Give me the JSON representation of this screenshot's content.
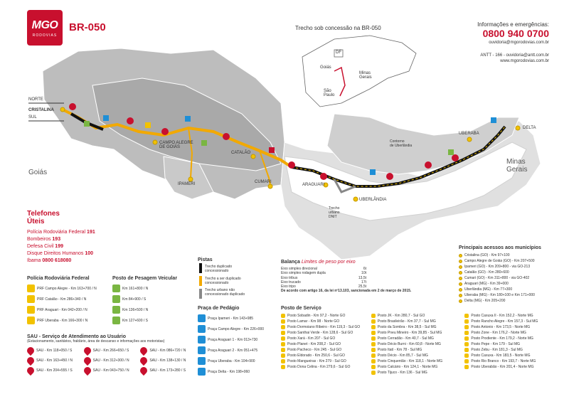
{
  "header": {
    "logo_text": "MGO",
    "logo_sub": "RODOVIAS",
    "highway": "BR-050",
    "trecho": "Trecho sob concessão na BR-050"
  },
  "contact": {
    "title": "Informações e emergências:",
    "phone": "0800 940 0700",
    "email": "ouvidoria@mgorodovias.com.br",
    "antt": "ANTT - 166 - ouvidoria@antt.com.br",
    "site": "www.mgorodovias.com.br"
  },
  "inset": {
    "df": "DF",
    "goias": "Goiás",
    "minas": "Minas\nGerais",
    "sp": "São\nPaulo"
  },
  "map_labels": {
    "norte": "NORTE",
    "sul": "SUL",
    "cristalina": "CRISTALINA",
    "campo_alegre": "CAMPO ALEGRE\nDE GOIÁS",
    "ipameri": "IPAMERI",
    "catalao": "CATALÃO",
    "cumari": "CUMARI",
    "araguari": "ARAGUARI",
    "uberlandia": "UBERLÂNDIA",
    "uberaba": "UBERABA",
    "delta": "DELTA",
    "goias": "Goiás",
    "minas_gerais": "Minas\nGerais",
    "contorno": "Contorno\nde Uberlândia",
    "trecho_urbano": "Trecho\nurbano\nDNIT"
  },
  "telefones": {
    "title": "Telefones\nÚteis",
    "items": [
      {
        "label": "Polícia Rodoviária Federal",
        "num": "191"
      },
      {
        "label": "Bombeiros",
        "num": "193"
      },
      {
        "label": "Defesa Civil",
        "num": "199"
      },
      {
        "label": "Disque Direitos Humanos",
        "num": "100"
      },
      {
        "label": "Ibama",
        "num": "0800 618080"
      }
    ]
  },
  "prf": {
    "title": "Polícia Rodoviária Federal",
    "items": [
      "PRF Campo Alegre - Km 163+700 / N",
      "PRF Catalão - Km 286+340 / N",
      "PRF Araguari - Km 042+200 / N",
      "PRF Uberaba - Km 166+300 / N"
    ]
  },
  "pesagem": {
    "title": "Posto de Pesagem Veicular",
    "items": [
      "Km 161+800 / N",
      "Km 84+900 / S",
      "Km 136+500 / N",
      "Km 127+600 / S"
    ]
  },
  "pistas": {
    "title": "Pistas",
    "items": [
      "Trecho duplicado\nconcessionado",
      "Trecho a ser duplicado\nconcessionado",
      "Trecho urbano não\nconcessionado duplicado"
    ]
  },
  "pedagio": {
    "title": "Praça de Pedágio",
    "items": [
      "Praça Ipameri - Km 143+985",
      "Praça Campo Alegre - Km 226+000",
      "Praça Araguari 1 - Km 013+730",
      "Praça Araguari 2 - Km 051+475",
      "Praça Uberaba - Km 104+900",
      "Praça Delta - Km 198+060"
    ]
  },
  "balanca": {
    "title": "Balança",
    "subtitle": "Limites de peso por eixo",
    "rows": [
      {
        "k": "Eixo simples direcional",
        "v": "6t"
      },
      {
        "k": "Eixo simples rodagem dupla",
        "v": "10t"
      },
      {
        "k": "Eixo tribus",
        "v": "13,5t"
      },
      {
        "k": "Eixo trucado",
        "v": "17t"
      },
      {
        "k": "Eixo tripo",
        "v": "25,5t"
      }
    ],
    "note": "De acordo com artigo 16, da lei nº13.103, sancionada em 2 de março de 2015."
  },
  "servico": {
    "title": "Posto de Serviço",
    "col1": [
      "Posto Sobadin - Km 97,2 - Norte GO",
      "Posto Lamar - Km 98 - Norte GO",
      "Posto Dormoiano Ribeiro - Km 119,3 - Sul GO",
      "Posto Santhai Verde - Km 128,6 - Sul GO",
      "Posto Xará - Km 207 - Sul GO",
      "Posto Planet - Km 208,2 - Sul GO",
      "Posto Pacheco - Km 245 - Sul GO",
      "Posto Eldorado - Km 250,6 - Sul GO",
      "Posto Mangueiras - Km 279 - Sul GO",
      "Posto Dona Celina - Km 279,6 - Sul GO"
    ],
    "col2": [
      "Posto JK - Km 280,7 - Sul GO",
      "Posto Brasileirão - Km 37,7 - Sul MG",
      "Posto da Sombra - Km 38,5 - Sul MG",
      "Posto Pneu Mineiro - Km 39,85 - Sul MG",
      "Posto Cerradão - Km 40,7 - Sul MG",
      "Posto Décio Burni - Km 60,8 - Norte MG",
      "Posto Itatí - Km 78 - Sul MG",
      "Posto Décio - Km 85,7 - Sul MG",
      "Posto Cinquentão - Km 118,1 - Norte MG",
      "Posto Calcário - Km 124,1 - Norte MG",
      "Posto Tijuco - Km 136 - Sul MG"
    ],
    "col3": [
      "Posto Caxuxa II - Km 152,2 - Norte MG",
      "Posto Rancho Alegre - Km 157,3 - Sul MG",
      "Posto Antonio - Km 173,5 - Norte MG",
      "Posto Zone - Km 176,2 - Norte MG",
      "Posto Prodiente - Km 179,2 - Norte MG",
      "Posto Pepe - Km 179 - Sul MG",
      "Posto Zebu - Km 181,3 - Sul MG",
      "Posto Caxuxa - Km 183,5 - Norte MG",
      "Posto Rio Branco - Km 193,7 - Norte MG",
      "Posto Uberabão - Km 201,4 - Norte MG"
    ]
  },
  "acessos": {
    "title": "Principais acessos aos municípios",
    "items": [
      "Cristalina (GO) - Km 97+100",
      "Campo Alegre de Goiás (GO) - Km 207+500",
      "Ipameri (GO) - Km 209+800 - via GO-213",
      "Catalão (GO) - Km 280+600",
      "Cumari (GO) - Km 311+800 - via GO-402",
      "Araguari (MG) - Km 39+000",
      "Uberlândia (MG) - Km 77+300",
      "Uberaba (MG) - Km 180+100 e Km 171+000",
      "Delta (MG) - Km 205+200"
    ]
  },
  "sau": {
    "title": "SAU - Serviço de Atendimento ao Usuário",
    "subtitle": "(Estacionamento, sanitários, fraldário, área de descanso e informações aos motoristas)",
    "items": [
      {
        "n": "1",
        "t": "SAU - Km 118+050 / S"
      },
      {
        "n": "2",
        "t": "SAU - Km 163+450 / N"
      },
      {
        "n": "3",
        "t": "SAU - Km 204+555 / S"
      },
      {
        "n": "4",
        "t": "SAU - Km 266+650 / S"
      },
      {
        "n": "5",
        "t": "SAU - Km 312+300 / N"
      },
      {
        "n": "6",
        "t": "SAU - Km 043+750 / N"
      },
      {
        "n": "7",
        "t": "SAU - Km 086+720 / N"
      },
      {
        "n": "8",
        "t": "SAU - Km 138+130 / N"
      },
      {
        "n": "9",
        "t": "SAU - Km 173+280 / S"
      }
    ]
  },
  "colors": {
    "red": "#c8102e",
    "yellow": "#f2c200",
    "green": "#7ab642",
    "blue": "#1f8fd6",
    "grey": "#b8b8b8"
  }
}
